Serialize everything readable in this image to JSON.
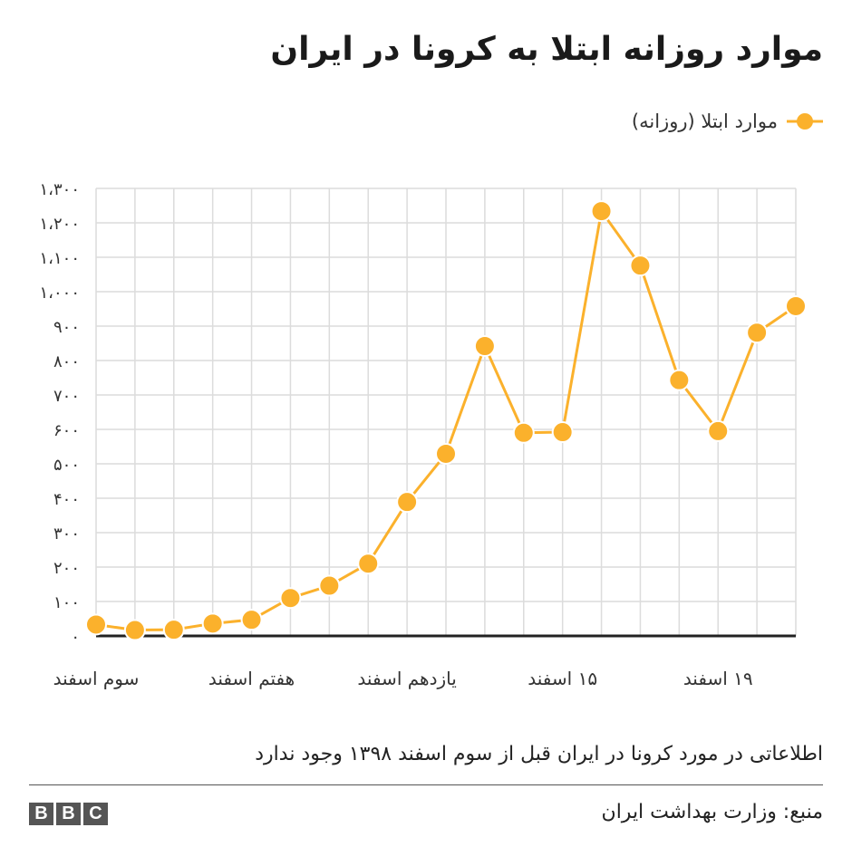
{
  "chart_data": {
    "type": "line",
    "title": "موارد روزانه ابتلا به کرونا در ایران",
    "legend": {
      "position": "top-right"
    },
    "series": [
      {
        "name": "موارد ابتلا (روزانه)",
        "color": "#fbb12c",
        "values": [
          33,
          17,
          18,
          36,
          47,
          110,
          146,
          210,
          389,
          529,
          842,
          590,
          592,
          1234,
          1076,
          743,
          595,
          881,
          958
        ]
      }
    ],
    "x_ticks": [
      {
        "index": 0,
        "label": "سوم اسفند"
      },
      {
        "index": 4,
        "label": "هفتم اسفند"
      },
      {
        "index": 8,
        "label": "یازدهم اسفند"
      },
      {
        "index": 12,
        "label": "۱۵ اسفند"
      },
      {
        "index": 16,
        "label": "۱۹ اسفند"
      }
    ],
    "y_ticks": [
      {
        "value": 0,
        "label": "۰"
      },
      {
        "value": 100,
        "label": "۱۰۰"
      },
      {
        "value": 200,
        "label": "۲۰۰"
      },
      {
        "value": 300,
        "label": "۳۰۰"
      },
      {
        "value": 400,
        "label": "۴۰۰"
      },
      {
        "value": 500,
        "label": "۵۰۰"
      },
      {
        "value": 600,
        "label": "۶۰۰"
      },
      {
        "value": 700,
        "label": "۷۰۰"
      },
      {
        "value": 800,
        "label": "۸۰۰"
      },
      {
        "value": 900,
        "label": "۹۰۰"
      },
      {
        "value": 1000,
        "label": "۱،۰۰۰"
      },
      {
        "value": 1100,
        "label": "۱،۱۰۰"
      },
      {
        "value": 1200,
        "label": "۱،۲۰۰"
      },
      {
        "value": 1300,
        "label": "۱،۳۰۰"
      }
    ],
    "ylim": [
      0,
      1300
    ],
    "grid": true,
    "grid_color": "#dcdcdc",
    "baseline_color": "#222222"
  },
  "note": "اطلاعاتی در مورد کرونا در ایران قبل از سوم اسفند ۱۳۹۸ وجود ندارد",
  "source": "منبع: وزارت بهداشت ایران",
  "logo": [
    "B",
    "B",
    "C"
  ]
}
